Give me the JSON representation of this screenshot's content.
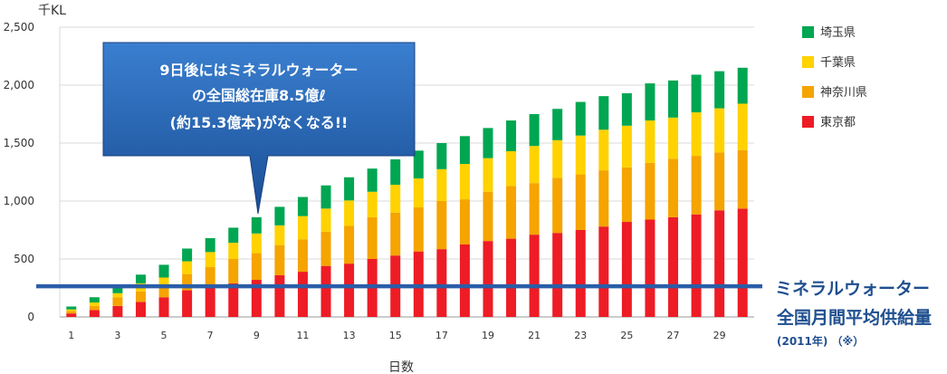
{
  "chart_data": {
    "type": "bar",
    "stacked": true,
    "y_unit": "千KL",
    "xlabel": "日数",
    "ylim": [
      0,
      2500
    ],
    "yticks": [
      "2,500",
      "2,000",
      "1,500",
      "1,000",
      "500",
      "0"
    ],
    "ytick_values": [
      2500,
      2000,
      1500,
      1000,
      500,
      0
    ],
    "x_ticks": [
      1,
      3,
      5,
      7,
      9,
      11,
      13,
      15,
      17,
      19,
      21,
      23,
      25,
      27,
      29
    ],
    "x": [
      1,
      2,
      3,
      4,
      5,
      6,
      7,
      8,
      9,
      10,
      11,
      12,
      13,
      14,
      15,
      16,
      17,
      18,
      19,
      20,
      21,
      22,
      23,
      24,
      25,
      26,
      27,
      28,
      29,
      30
    ],
    "series": [
      {
        "name": "東京都",
        "color": "#ee1c25",
        "values": [
          30,
          60,
          95,
          130,
          170,
          230,
          250,
          290,
          320,
          360,
          390,
          440,
          460,
          500,
          530,
          565,
          585,
          625,
          655,
          675,
          710,
          725,
          750,
          780,
          820,
          840,
          860,
          885,
          920,
          935
        ]
      },
      {
        "name": "神奈川県",
        "color": "#f5a400",
        "values": [
          20,
          35,
          75,
          90,
          90,
          140,
          180,
          210,
          230,
          260,
          280,
          295,
          325,
          360,
          370,
          380,
          415,
          390,
          425,
          455,
          445,
          475,
          480,
          485,
          470,
          490,
          505,
          505,
          500,
          505
        ]
      },
      {
        "name": "千葉県",
        "color": "#ffd200",
        "values": [
          15,
          30,
          35,
          70,
          80,
          110,
          130,
          140,
          170,
          170,
          200,
          200,
          220,
          220,
          240,
          250,
          275,
          305,
          290,
          300,
          320,
          325,
          335,
          350,
          360,
          365,
          355,
          375,
          380,
          400
        ]
      },
      {
        "name": "埼玉県",
        "color": "#00a651",
        "values": [
          25,
          45,
          55,
          75,
          110,
          110,
          120,
          130,
          140,
          160,
          165,
          200,
          200,
          200,
          220,
          240,
          225,
          240,
          260,
          265,
          275,
          270,
          290,
          290,
          280,
          320,
          320,
          325,
          320,
          310
        ]
      }
    ],
    "reference_line": {
      "value": 265,
      "color": "#2a5ea8",
      "label": "ミネラルウォーター",
      "label2": "全国月間平均供給量",
      "note": "(2011年) （※）"
    },
    "annotation": {
      "lines": [
        "9日後にはミネラルウォーター",
        "の全国総在庫8.5億ℓ",
        "(約15.3億本)がなくなる!!"
      ],
      "points_to_day": 9
    }
  }
}
